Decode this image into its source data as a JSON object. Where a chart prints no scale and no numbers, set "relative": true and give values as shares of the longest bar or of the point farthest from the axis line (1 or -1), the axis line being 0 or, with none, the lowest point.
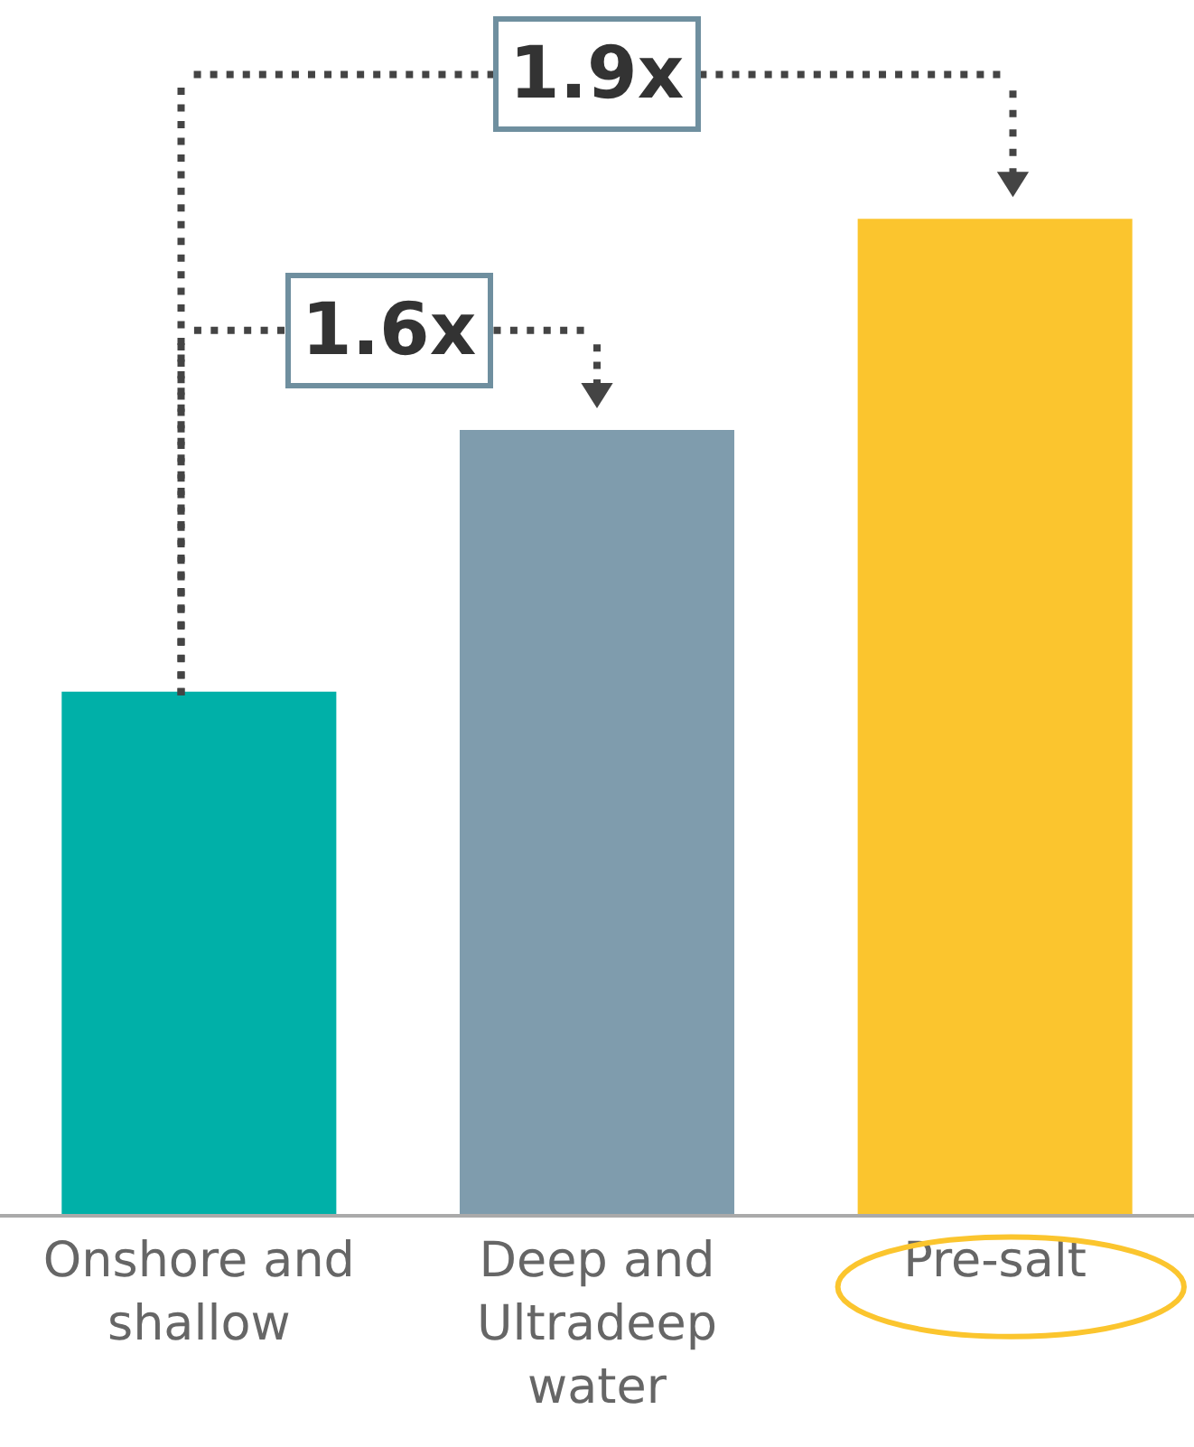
{
  "chart_data": {
    "type": "bar",
    "relative": true,
    "categories": [
      "Onshore and shallow",
      "Deep and Ultradeep water",
      "Pre-salt"
    ],
    "values": [
      0.525,
      0.788,
      1
    ],
    "colors": [
      "#00b0a8",
      "#7f9cad",
      "#fbc52e"
    ],
    "annotations": [
      "1.6x",
      "1.9x"
    ],
    "legend": false
  }
}
